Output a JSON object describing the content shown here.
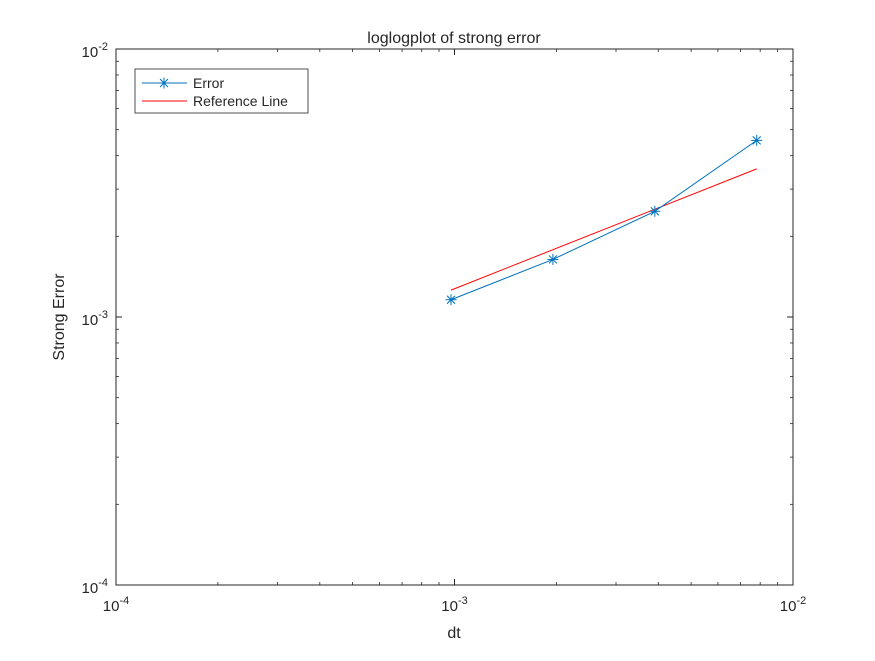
{
  "chart_data": {
    "type": "line",
    "title": "loglogplot of strong error",
    "xlabel": "dt",
    "ylabel": "Strong Error",
    "xscale": "log",
    "yscale": "log",
    "xlim": [
      0.0001,
      0.01
    ],
    "ylim": [
      0.0001,
      0.01
    ],
    "x_major_ticks": [
      {
        "value": 0.0001,
        "base": "10",
        "exp": "-4"
      },
      {
        "value": 0.001,
        "base": "10",
        "exp": "-3"
      },
      {
        "value": 0.01,
        "base": "10",
        "exp": "-2"
      }
    ],
    "y_major_ticks": [
      {
        "value": 0.0001,
        "base": "10",
        "exp": "-4"
      },
      {
        "value": 0.001,
        "base": "10",
        "exp": "-3"
      },
      {
        "value": 0.01,
        "base": "10",
        "exp": "-2"
      }
    ],
    "grid": false,
    "box": true,
    "legend_location": "top-left",
    "series": [
      {
        "name": "Error",
        "color": "#0072BD",
        "marker": "asterisk",
        "x": [
          0.0009765625,
          0.001953125,
          0.00390625,
          0.0078125
        ],
        "y": [
          0.00116,
          0.00164,
          0.00248,
          0.00456
        ]
      },
      {
        "name": "Reference Line",
        "color": "#FF0000",
        "marker": "none",
        "x": [
          0.0009765625,
          0.0078125
        ],
        "y": [
          0.00126,
          0.00357
        ]
      }
    ]
  }
}
